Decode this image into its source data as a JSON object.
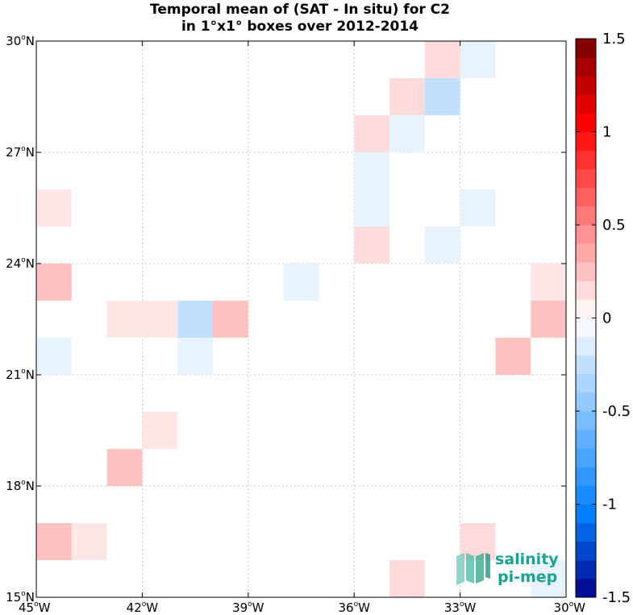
{
  "chart_data": {
    "type": "heatmap",
    "title": [
      "Temporal mean of (SAT - In situ) for C2",
      "in 1°x1° boxes over 2012-2014"
    ],
    "xlabel": "",
    "ylabel": "",
    "x_range": [
      -45,
      -30
    ],
    "y_range": [
      15,
      30
    ],
    "x_ticks": [
      -45,
      -42,
      -39,
      -36,
      -33,
      -30
    ],
    "x_tick_labels": [
      "45°W",
      "42°W",
      "39°W",
      "36°W",
      "33°W",
      "30°W"
    ],
    "y_ticks": [
      15,
      18,
      21,
      24,
      27,
      30
    ],
    "y_tick_labels": [
      "15°N",
      "18°N",
      "21°N",
      "24°N",
      "27°N",
      "30°N"
    ],
    "grid": true,
    "cells": [
      {
        "lon": -34,
        "lat": 29,
        "value": 0.15
      },
      {
        "lon": -33,
        "lat": 29,
        "value": -0.1
      },
      {
        "lon": -35,
        "lat": 28,
        "value": 0.15
      },
      {
        "lon": -34,
        "lat": 28,
        "value": -0.25
      },
      {
        "lon": -36,
        "lat": 27,
        "value": 0.15
      },
      {
        "lon": -35,
        "lat": 27,
        "value": -0.1
      },
      {
        "lon": -36,
        "lat": 26,
        "value": -0.1
      },
      {
        "lon": -36,
        "lat": 25,
        "value": -0.1
      },
      {
        "lon": -33,
        "lat": 25,
        "value": -0.1
      },
      {
        "lon": -45,
        "lat": 25,
        "value": 0.1
      },
      {
        "lon": -36,
        "lat": 24,
        "value": 0.15
      },
      {
        "lon": -34,
        "lat": 24,
        "value": -0.1
      },
      {
        "lon": -45,
        "lat": 23,
        "value": 0.25
      },
      {
        "lon": -38,
        "lat": 23,
        "value": -0.1
      },
      {
        "lon": -31,
        "lat": 23,
        "value": 0.1
      },
      {
        "lon": -43,
        "lat": 22,
        "value": 0.1
      },
      {
        "lon": -42,
        "lat": 22,
        "value": 0.1
      },
      {
        "lon": -41,
        "lat": 22,
        "value": -0.25
      },
      {
        "lon": -40,
        "lat": 22,
        "value": 0.25
      },
      {
        "lon": -31,
        "lat": 22,
        "value": 0.25
      },
      {
        "lon": -45,
        "lat": 21,
        "value": -0.1
      },
      {
        "lon": -41,
        "lat": 21,
        "value": -0.1
      },
      {
        "lon": -32,
        "lat": 21,
        "value": 0.25
      },
      {
        "lon": -42,
        "lat": 19,
        "value": 0.1
      },
      {
        "lon": -43,
        "lat": 18,
        "value": 0.25
      },
      {
        "lon": -45,
        "lat": 16,
        "value": 0.25
      },
      {
        "lon": -44,
        "lat": 16,
        "value": 0.1
      },
      {
        "lon": -33,
        "lat": 16,
        "value": 0.15
      },
      {
        "lon": -35,
        "lat": 15,
        "value": 0.15
      },
      {
        "lon": -31,
        "lat": 15,
        "value": -0.1
      }
    ],
    "colorbar": {
      "range": [
        -1.5,
        1.5
      ],
      "step": 0.1,
      "ticks": [
        1.5,
        1,
        0.5,
        0,
        -0.5,
        -1,
        -1.5
      ],
      "tick_labels": [
        "1.5",
        "1",
        "0.5",
        "0",
        "-0.5",
        "-1",
        "-1.5"
      ],
      "colormap": "blue-white-red"
    }
  },
  "logo": {
    "line1": "salinity",
    "line2": "pi-mep"
  }
}
